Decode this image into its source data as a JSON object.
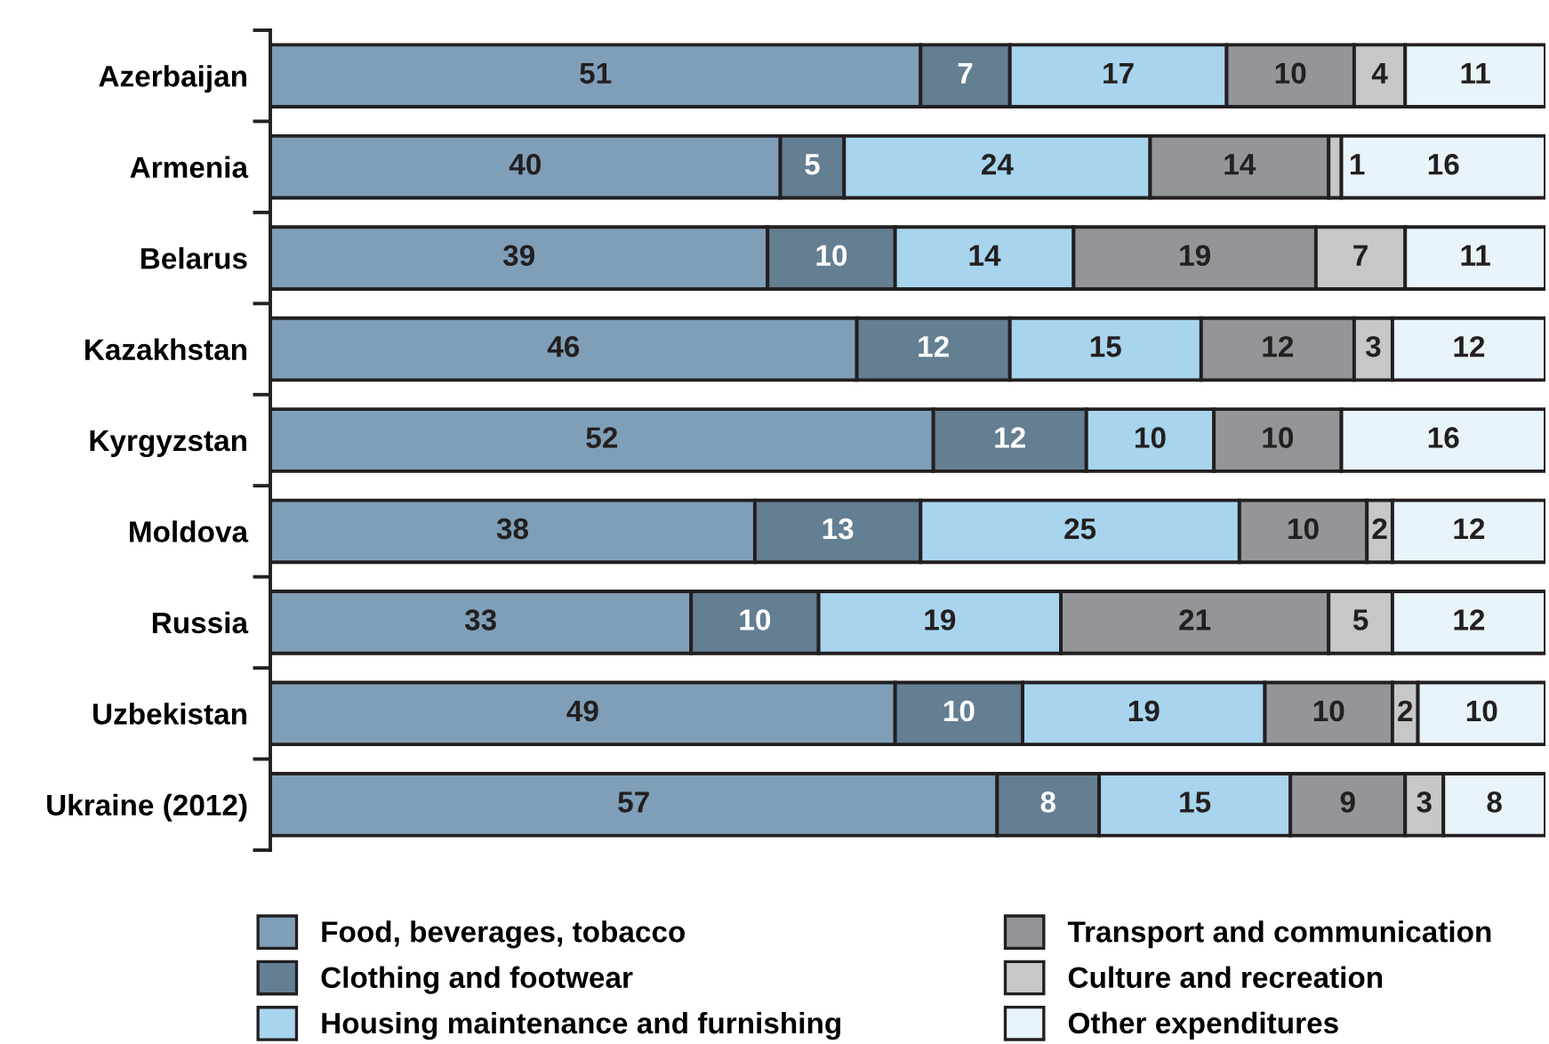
{
  "chart_data": {
    "type": "bar",
    "orientation": "horizontal",
    "stacked": true,
    "tick_labels": "y",
    "legend": "bottom",
    "xlim": [
      0,
      100
    ],
    "categories": [
      "Azerbaijan",
      "Armenia",
      "Belarus",
      "Kazakhstan",
      "Kyrgyzstan",
      "Moldova",
      "Russia",
      "Uzbekistan",
      "Ukraine (2012)"
    ],
    "series": [
      {
        "name": "Food, beverages, tobacco",
        "color": "#7f9fb8",
        "values": [
          51,
          40,
          39,
          46,
          52,
          38,
          33,
          49,
          57
        ],
        "value_labels": [
          "51",
          "40",
          "39",
          "46",
          "52",
          "38",
          "33",
          "49",
          "57"
        ]
      },
      {
        "name": "Clothing and footwear",
        "color": "#647e92",
        "values": [
          7,
          5,
          10,
          12,
          12,
          13,
          10,
          10,
          8
        ],
        "value_labels": [
          "7",
          "5",
          "10",
          "12",
          "12",
          "13",
          "10",
          "10",
          "8"
        ]
      },
      {
        "name": "Housing maintenance and furnishing",
        "color": "#a8d4ee",
        "values": [
          17,
          24,
          14,
          15,
          10,
          25,
          19,
          19,
          15
        ],
        "value_labels": [
          "17",
          "24",
          "14",
          "15",
          "10",
          "25",
          "19",
          "19",
          "15"
        ]
      },
      {
        "name": "Transport and communication",
        "color": "#939598",
        "values": [
          10,
          14,
          19,
          12,
          10,
          10,
          21,
          10,
          9
        ],
        "value_labels": [
          "10",
          "14",
          "19",
          "12",
          "10",
          "10",
          "21",
          "10",
          "9"
        ]
      },
      {
        "name": "Culture and recreation",
        "color": "#c6c7c9",
        "values": [
          4,
          1,
          7,
          3,
          null,
          2,
          5,
          2,
          3
        ],
        "value_labels": [
          "4",
          "1",
          "7",
          "3",
          null,
          "2",
          "5",
          "2",
          "3"
        ]
      },
      {
        "name": "Other expenditures",
        "color": "#e8f3fa",
        "values": [
          11,
          16,
          11,
          12,
          16,
          12,
          12,
          10,
          8
        ],
        "value_labels": [
          "11",
          "16",
          "11",
          "12",
          "16",
          "12",
          "12",
          "10",
          "8"
        ]
      }
    ]
  }
}
